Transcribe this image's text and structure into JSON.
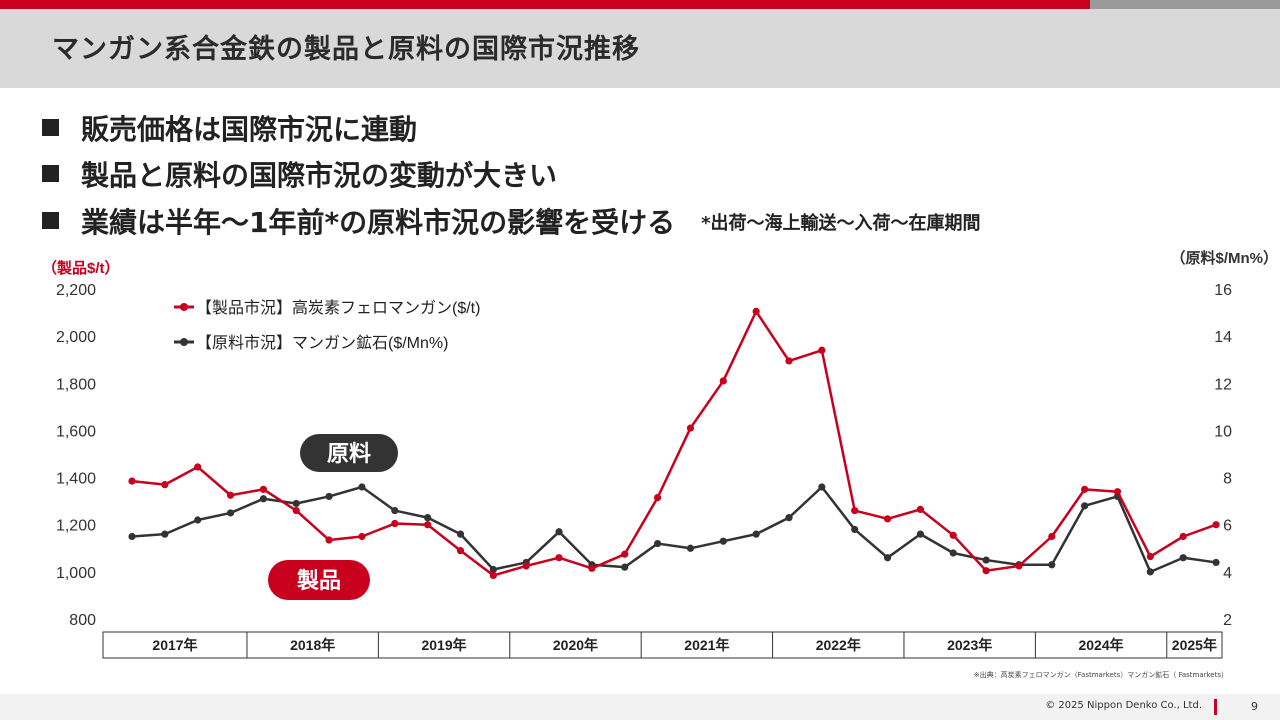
{
  "header": {
    "title": "マンガン系合金鉄の製品と原料の国際市況推移"
  },
  "bullets": [
    {
      "text": "販売価格は国際市況に連動",
      "note": ""
    },
    {
      "text": "製品と原料の国際市況の変動が大きい",
      "note": ""
    },
    {
      "text": "業績は半年～1年前*の原料市況の影響を受ける",
      "note": "*出荷～海上輸送～入荷～在庫期間"
    }
  ],
  "colors": {
    "product": "#c8001e",
    "material": "#333333",
    "accent_red": "#c8001e",
    "accent_gray": "#9a9a9a"
  },
  "chart_data": {
    "type": "line",
    "left_axis": {
      "label": "（製品$/t）",
      "range": [
        800,
        2200
      ],
      "ticks": [
        "800",
        "1,000",
        "1,200",
        "1,400",
        "1,600",
        "1,800",
        "2,000",
        "2,200"
      ]
    },
    "right_axis": {
      "label": "（原料$/Mn%）",
      "range": [
        2,
        16
      ],
      "ticks": [
        "2",
        "4",
        "6",
        "8",
        "10",
        "12",
        "14",
        "16"
      ]
    },
    "years": [
      {
        "label": "2017年",
        "quarters": 4
      },
      {
        "label": "2018年",
        "quarters": 4
      },
      {
        "label": "2019年",
        "quarters": 4
      },
      {
        "label": "2020年",
        "quarters": 4
      },
      {
        "label": "2021年",
        "quarters": 4
      },
      {
        "label": "2022年",
        "quarters": 4
      },
      {
        "label": "2023年",
        "quarters": 4
      },
      {
        "label": "2024年",
        "quarters": 4
      },
      {
        "label": "2025年",
        "quarters": 2
      }
    ],
    "series": [
      {
        "name": "【製品市況】高炭素フェロマンガン($/t)",
        "axis": "left",
        "color": "#c8001e",
        "tag": "製品",
        "values": [
          1385,
          1370,
          1445,
          1325,
          1350,
          1260,
          1135,
          1150,
          1205,
          1200,
          1090,
          985,
          1025,
          1060,
          1015,
          1075,
          1315,
          1610,
          1810,
          2105,
          1895,
          1940,
          1260,
          1225,
          1265,
          1155,
          1005,
          1025,
          1150,
          1350,
          1340,
          1065,
          1150,
          1200
        ]
      },
      {
        "name": "【原料市況】マンガン鉱石($/Mn%)",
        "axis": "right",
        "color": "#333333",
        "tag": "原料",
        "values": [
          5.5,
          5.6,
          6.2,
          6.5,
          7.1,
          6.9,
          7.2,
          7.6,
          6.6,
          6.3,
          5.6,
          4.1,
          4.4,
          5.7,
          4.3,
          4.2,
          5.2,
          5.0,
          5.3,
          5.6,
          6.3,
          7.6,
          5.8,
          4.6,
          5.6,
          4.8,
          4.5,
          4.3,
          4.3,
          6.8,
          7.2,
          4.0,
          4.6,
          4.4
        ]
      }
    ],
    "grid": false,
    "legend_position": "top-left"
  },
  "footer": {
    "source": "※出典：高炭素フェロマンガン（Fastmarkets）マンガン鉱石（ Fastmarkets）",
    "copyright": "© 2025 Nippon Denko Co., Ltd.",
    "page": "9"
  }
}
